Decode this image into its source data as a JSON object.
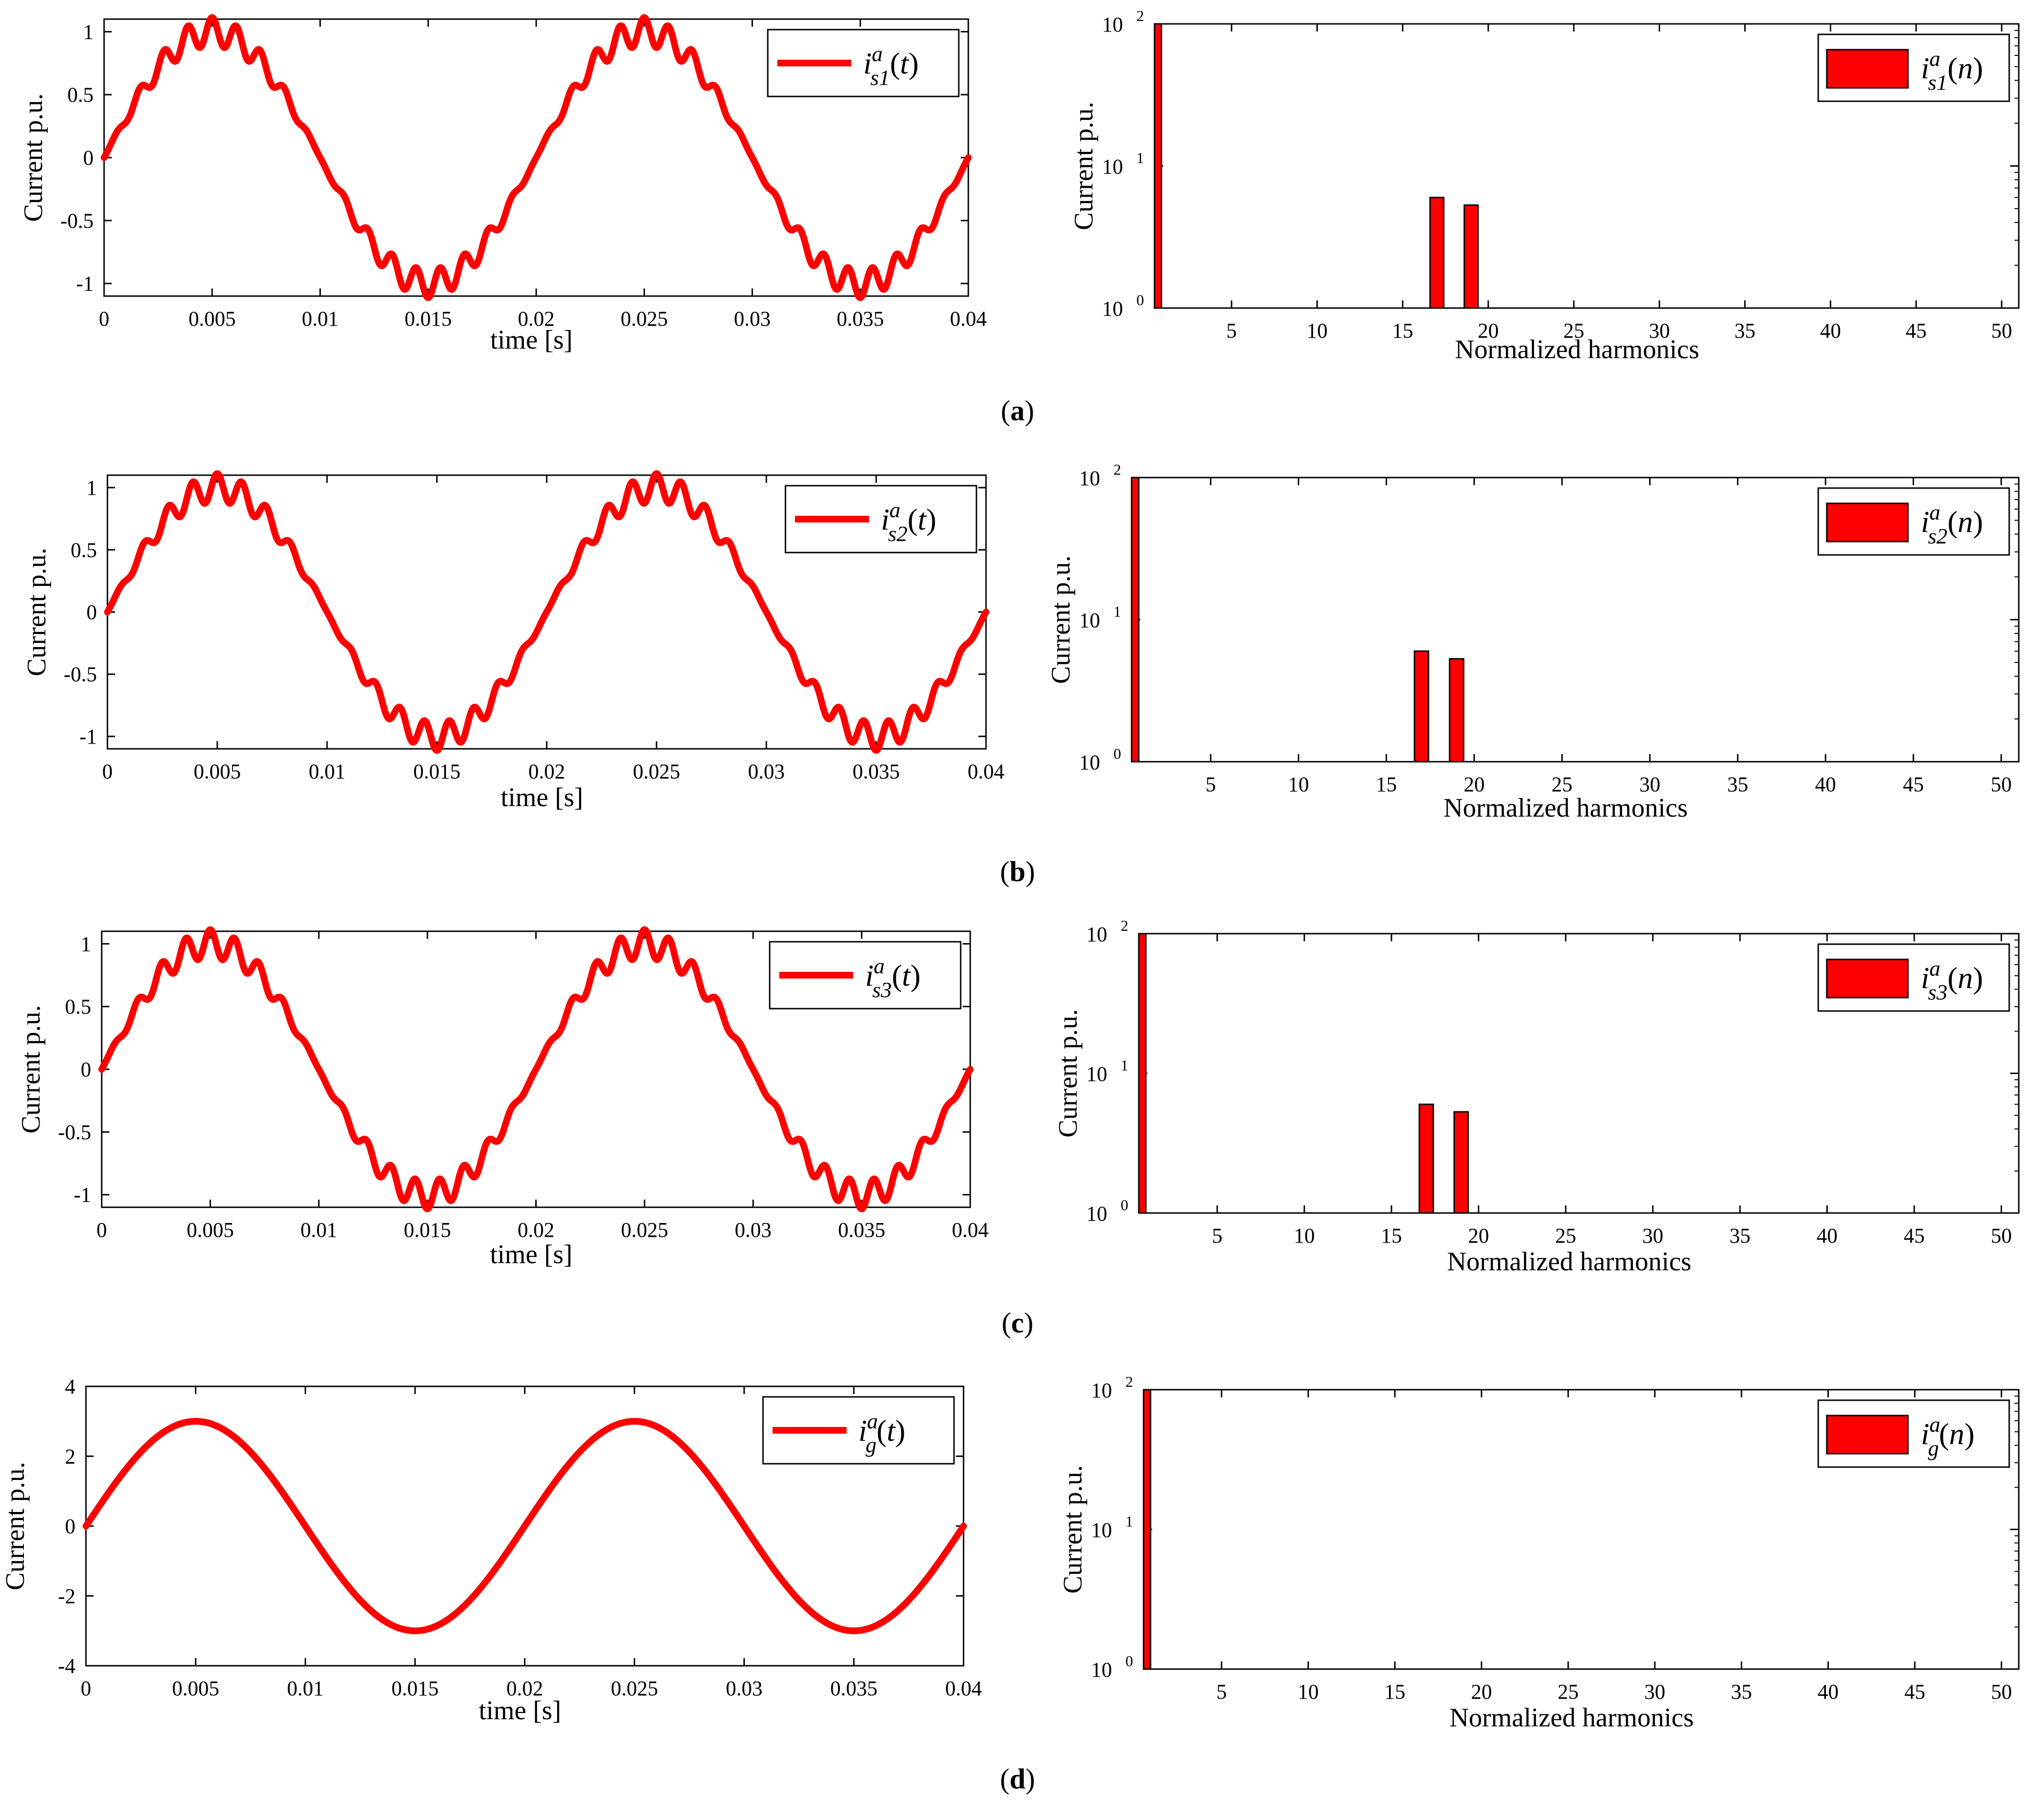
{
  "figure": {
    "panel_labels": [
      "(a)",
      "(b)",
      "(c)",
      "(d)"
    ]
  },
  "colors": {
    "series": "#ff0000",
    "axis": "#000000",
    "background": "#ffffff"
  },
  "chart_data": [
    {
      "id": "a-time",
      "type": "line",
      "title": "",
      "xlabel": "time [s]",
      "ylabel": "Current p.u.",
      "xlim": [
        0,
        0.04
      ],
      "ylim": [
        -1.1,
        1.1
      ],
      "xticks": [
        0,
        0.005,
        0.01,
        0.015,
        0.02,
        0.025,
        0.03,
        0.035,
        0.04
      ],
      "xtick_labels": [
        "0",
        "0.005",
        "0.01",
        "0.015",
        "0.02",
        "0.025",
        "0.03",
        "0.035",
        "0.04"
      ],
      "yticks": [
        -1,
        -0.5,
        0,
        0.5,
        1
      ],
      "ytick_labels": [
        "-1",
        "-0.5",
        "0",
        "0.5",
        "1"
      ],
      "legend": {
        "base": "i",
        "sup": "a",
        "sub": "s1",
        "arg": "t",
        "position": "top-right"
      },
      "signal": {
        "fundamental_hz": 50,
        "amplitude": 1.0,
        "harmonics": [
          {
            "order": 17,
            "amplitude": 0.06
          },
          {
            "order": 19,
            "amplitude": 0.053
          }
        ]
      }
    },
    {
      "id": "a-spectrum",
      "type": "bar",
      "yscale": "log",
      "xlabel": "Normalized harmonics",
      "ylabel": "Current p.u.",
      "xlim": [
        0.5,
        51
      ],
      "ylim": [
        1,
        100
      ],
      "xticks": [
        5,
        10,
        15,
        20,
        25,
        30,
        35,
        40,
        45,
        50
      ],
      "yticks": [
        {
          "base": "10",
          "exp": "0"
        },
        {
          "base": "10",
          "exp": "1"
        },
        {
          "base": "10",
          "exp": "2"
        }
      ],
      "legend": {
        "base": "i",
        "sup": "a",
        "sub": "s1",
        "arg": "n",
        "position": "top-right"
      },
      "bars": [
        {
          "harmonic": 1,
          "value": 100
        },
        {
          "harmonic": 17,
          "value": 6
        },
        {
          "harmonic": 19,
          "value": 5.3
        }
      ]
    },
    {
      "id": "b-time",
      "type": "line",
      "xlabel": "time [s]",
      "ylabel": "Current p.u.",
      "xlim": [
        0,
        0.04
      ],
      "ylim": [
        -1.1,
        1.1
      ],
      "xticks": [
        0,
        0.005,
        0.01,
        0.015,
        0.02,
        0.025,
        0.03,
        0.035,
        0.04
      ],
      "xtick_labels": [
        "0",
        "0.005",
        "0.01",
        "0.015",
        "0.02",
        "0.025",
        "0.03",
        "0.035",
        "0.04"
      ],
      "yticks": [
        -1,
        -0.5,
        0,
        0.5,
        1
      ],
      "ytick_labels": [
        "-1",
        "-0.5",
        "0",
        "0.5",
        "1"
      ],
      "legend": {
        "base": "i",
        "sup": "a",
        "sub": "s2",
        "arg": "t",
        "position": "top-right"
      },
      "signal": {
        "fundamental_hz": 50,
        "amplitude": 1.0,
        "harmonics": [
          {
            "order": 17,
            "amplitude": 0.06
          },
          {
            "order": 19,
            "amplitude": 0.053
          }
        ]
      }
    },
    {
      "id": "b-spectrum",
      "type": "bar",
      "yscale": "log",
      "xlabel": "Normalized harmonics",
      "ylabel": "Current p.u.",
      "xlim": [
        0.5,
        51
      ],
      "ylim": [
        1,
        100
      ],
      "xticks": [
        5,
        10,
        15,
        20,
        25,
        30,
        35,
        40,
        45,
        50
      ],
      "yticks": [
        {
          "base": "10",
          "exp": "0"
        },
        {
          "base": "10",
          "exp": "1"
        },
        {
          "base": "10",
          "exp": "2"
        }
      ],
      "legend": {
        "base": "i",
        "sup": "a",
        "sub": "s2",
        "arg": "n",
        "position": "top-right"
      },
      "bars": [
        {
          "harmonic": 1,
          "value": 100
        },
        {
          "harmonic": 17,
          "value": 6
        },
        {
          "harmonic": 19,
          "value": 5.3
        }
      ]
    },
    {
      "id": "c-time",
      "type": "line",
      "xlabel": "time [s]",
      "ylabel": "Current p.u.",
      "xlim": [
        0,
        0.04
      ],
      "ylim": [
        -1.1,
        1.1
      ],
      "xticks": [
        0,
        0.005,
        0.01,
        0.015,
        0.02,
        0.025,
        0.03,
        0.035,
        0.04
      ],
      "xtick_labels": [
        "0",
        "0.005",
        "0.01",
        "0.015",
        "0.02",
        "0.025",
        "0.03",
        "0.035",
        "0.04"
      ],
      "yticks": [
        -1,
        -0.5,
        0,
        0.5,
        1
      ],
      "ytick_labels": [
        "-1",
        "-0.5",
        "0",
        "0.5",
        "1"
      ],
      "legend": {
        "base": "i",
        "sup": "a",
        "sub": "s3",
        "arg": "t",
        "position": "top-right"
      },
      "signal": {
        "fundamental_hz": 50,
        "amplitude": 1.0,
        "harmonics": [
          {
            "order": 17,
            "amplitude": 0.06
          },
          {
            "order": 19,
            "amplitude": 0.053
          }
        ]
      }
    },
    {
      "id": "c-spectrum",
      "type": "bar",
      "yscale": "log",
      "xlabel": "Normalized harmonics",
      "ylabel": "Current p.u.",
      "xlim": [
        0.5,
        51
      ],
      "ylim": [
        1,
        100
      ],
      "xticks": [
        5,
        10,
        15,
        20,
        25,
        30,
        35,
        40,
        45,
        50
      ],
      "yticks": [
        {
          "base": "10",
          "exp": "0"
        },
        {
          "base": "10",
          "exp": "1"
        },
        {
          "base": "10",
          "exp": "2"
        }
      ],
      "legend": {
        "base": "i",
        "sup": "a",
        "sub": "s3",
        "arg": "n",
        "position": "top-right"
      },
      "bars": [
        {
          "harmonic": 1,
          "value": 100
        },
        {
          "harmonic": 17,
          "value": 6
        },
        {
          "harmonic": 19,
          "value": 5.3
        }
      ]
    },
    {
      "id": "d-time",
      "type": "line",
      "xlabel": "time [s]",
      "ylabel": "Current p.u.",
      "xlim": [
        0,
        0.04
      ],
      "ylim": [
        -4,
        4
      ],
      "xticks": [
        0,
        0.005,
        0.01,
        0.015,
        0.02,
        0.025,
        0.03,
        0.035,
        0.04
      ],
      "xtick_labels": [
        "0",
        "0.005",
        "0.01",
        "0.015",
        "0.02",
        "0.025",
        "0.03",
        "0.035",
        "0.04"
      ],
      "yticks": [
        -4,
        -2,
        0,
        2,
        4
      ],
      "ytick_labels": [
        "-4",
        "-2",
        "0",
        "2",
        "4"
      ],
      "legend": {
        "base": "i",
        "sup": "a",
        "sub": "g",
        "arg": "t",
        "position": "top-right"
      },
      "signal": {
        "fundamental_hz": 50,
        "amplitude": 3.0,
        "harmonics": []
      }
    },
    {
      "id": "d-spectrum",
      "type": "bar",
      "yscale": "log",
      "xlabel": "Normalized harmonics",
      "ylabel": "Current p.u.",
      "xlim": [
        0.5,
        51
      ],
      "ylim": [
        1,
        100
      ],
      "xticks": [
        5,
        10,
        15,
        20,
        25,
        30,
        35,
        40,
        45,
        50
      ],
      "yticks": [
        {
          "base": "10",
          "exp": "0"
        },
        {
          "base": "10",
          "exp": "1"
        },
        {
          "base": "10",
          "exp": "2"
        }
      ],
      "legend": {
        "base": "i",
        "sup": "a",
        "sub": "g",
        "arg": "n",
        "position": "top-right"
      },
      "bars": [
        {
          "harmonic": 1,
          "value": 100
        }
      ]
    }
  ]
}
